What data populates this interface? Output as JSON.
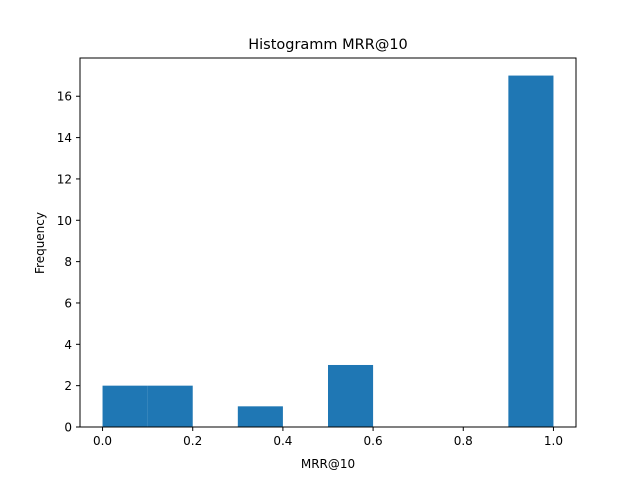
{
  "chart_data": {
    "type": "bar",
    "title": "Histogramm MRR@10",
    "xlabel": "MRR@10",
    "ylabel": "Frequency",
    "xlim": [
      -0.05,
      1.05
    ],
    "ylim": [
      0,
      17.85
    ],
    "bar_color": "#1f77b4",
    "bin_edges": [
      0.0,
      0.1,
      0.2,
      0.3,
      0.4,
      0.5,
      0.6,
      0.7,
      0.8,
      0.9,
      1.0
    ],
    "counts": [
      2,
      2,
      0,
      1,
      0,
      3,
      0,
      0,
      0,
      17
    ],
    "x_ticks": [
      0.0,
      0.2,
      0.4,
      0.6,
      0.8,
      1.0
    ],
    "x_tick_labels": [
      "0.0",
      "0.2",
      "0.4",
      "0.6",
      "0.8",
      "1.0"
    ],
    "y_ticks": [
      0,
      2,
      4,
      6,
      8,
      10,
      12,
      14,
      16
    ],
    "y_tick_labels": [
      "0",
      "2",
      "4",
      "6",
      "8",
      "10",
      "12",
      "14",
      "16"
    ],
    "grid": false,
    "legend": false
  }
}
